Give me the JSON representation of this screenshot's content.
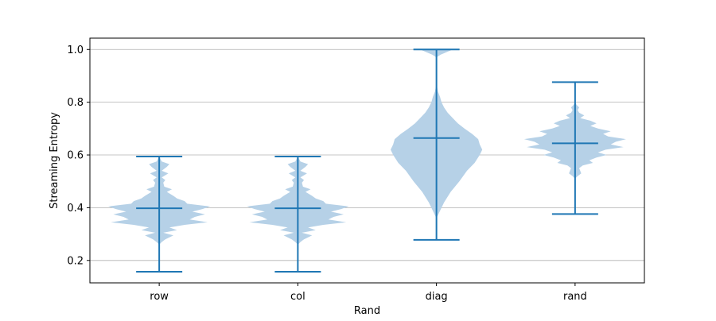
{
  "chart_data": {
    "type": "violin",
    "title": "",
    "xlabel": "Rand",
    "ylabel": "Streaming Entropy",
    "categories": [
      "row",
      "col",
      "diag",
      "rand"
    ],
    "ylim": [
      0.115,
      1.043
    ],
    "yticks": [
      0.2,
      0.4,
      0.6,
      0.8,
      1.0
    ],
    "ytick_labels": [
      "0.2",
      "0.4",
      "0.6",
      "0.8",
      "1.0"
    ],
    "grid": "y",
    "colors": {
      "body": "#b6d1e7",
      "line": "#1f77b4"
    },
    "distributions": [
      {
        "category": "row",
        "min": 0.157,
        "max": 0.594,
        "median": 0.398,
        "profile": [
          [
            0.157,
            0
          ],
          [
            0.26,
            0
          ],
          [
            0.27,
            0.05
          ],
          [
            0.28,
            0.12
          ],
          [
            0.295,
            0.28
          ],
          [
            0.305,
            0.08
          ],
          [
            0.315,
            0.35
          ],
          [
            0.325,
            0.2
          ],
          [
            0.335,
            0.5
          ],
          [
            0.345,
            0.95
          ],
          [
            0.355,
            0.6
          ],
          [
            0.365,
            0.7
          ],
          [
            0.375,
            0.9
          ],
          [
            0.385,
            0.65
          ],
          [
            0.395,
            0.85
          ],
          [
            0.405,
            1.0
          ],
          [
            0.415,
            0.55
          ],
          [
            0.425,
            0.5
          ],
          [
            0.435,
            0.35
          ],
          [
            0.445,
            0.28
          ],
          [
            0.46,
            0.15
          ],
          [
            0.47,
            0.25
          ],
          [
            0.48,
            0.1
          ],
          [
            0.495,
            0.08
          ],
          [
            0.505,
            0.12
          ],
          [
            0.515,
            0.05
          ],
          [
            0.53,
            0.18
          ],
          [
            0.54,
            0.05
          ],
          [
            0.555,
            0.15
          ],
          [
            0.565,
            0.2
          ],
          [
            0.575,
            0.05
          ],
          [
            0.594,
            0
          ]
        ]
      },
      {
        "category": "col",
        "min": 0.157,
        "max": 0.594,
        "median": 0.398,
        "profile": [
          [
            0.157,
            0
          ],
          [
            0.26,
            0
          ],
          [
            0.27,
            0.05
          ],
          [
            0.28,
            0.12
          ],
          [
            0.295,
            0.28
          ],
          [
            0.305,
            0.08
          ],
          [
            0.315,
            0.35
          ],
          [
            0.325,
            0.2
          ],
          [
            0.335,
            0.5
          ],
          [
            0.345,
            0.95
          ],
          [
            0.355,
            0.6
          ],
          [
            0.365,
            0.7
          ],
          [
            0.375,
            0.9
          ],
          [
            0.385,
            0.65
          ],
          [
            0.395,
            0.85
          ],
          [
            0.405,
            1.0
          ],
          [
            0.415,
            0.55
          ],
          [
            0.425,
            0.5
          ],
          [
            0.435,
            0.35
          ],
          [
            0.445,
            0.28
          ],
          [
            0.46,
            0.15
          ],
          [
            0.47,
            0.25
          ],
          [
            0.48,
            0.1
          ],
          [
            0.495,
            0.08
          ],
          [
            0.505,
            0.12
          ],
          [
            0.515,
            0.05
          ],
          [
            0.53,
            0.18
          ],
          [
            0.54,
            0.05
          ],
          [
            0.555,
            0.15
          ],
          [
            0.565,
            0.2
          ],
          [
            0.575,
            0.05
          ],
          [
            0.594,
            0
          ]
        ]
      },
      {
        "category": "diag",
        "min": 0.278,
        "max": 1.0,
        "median": 0.664,
        "profile": [
          [
            0.278,
            0
          ],
          [
            0.36,
            0
          ],
          [
            0.38,
            0.05
          ],
          [
            0.42,
            0.15
          ],
          [
            0.46,
            0.28
          ],
          [
            0.5,
            0.45
          ],
          [
            0.54,
            0.6
          ],
          [
            0.57,
            0.75
          ],
          [
            0.6,
            0.85
          ],
          [
            0.62,
            0.9
          ],
          [
            0.64,
            0.85
          ],
          [
            0.66,
            0.82
          ],
          [
            0.68,
            0.7
          ],
          [
            0.7,
            0.55
          ],
          [
            0.72,
            0.42
          ],
          [
            0.74,
            0.32
          ],
          [
            0.76,
            0.22
          ],
          [
            0.78,
            0.15
          ],
          [
            0.8,
            0.1
          ],
          [
            0.82,
            0.07
          ],
          [
            0.84,
            0.03
          ],
          [
            0.86,
            0.01
          ],
          [
            0.9,
            0
          ],
          [
            0.97,
            0
          ],
          [
            0.98,
            0.08
          ],
          [
            0.99,
            0.2
          ],
          [
            1.0,
            0.32
          ]
        ]
      },
      {
        "category": "rand",
        "min": 0.376,
        "max": 0.876,
        "median": 0.644,
        "profile": [
          [
            0.376,
            0
          ],
          [
            0.51,
            0
          ],
          [
            0.52,
            0.05
          ],
          [
            0.53,
            0.12
          ],
          [
            0.54,
            0.1
          ],
          [
            0.55,
            0.08
          ],
          [
            0.56,
            0.15
          ],
          [
            0.57,
            0.35
          ],
          [
            0.58,
            0.28
          ],
          [
            0.59,
            0.42
          ],
          [
            0.6,
            0.62
          ],
          [
            0.61,
            0.45
          ],
          [
            0.62,
            0.6
          ],
          [
            0.63,
            0.95
          ],
          [
            0.64,
            0.7
          ],
          [
            0.65,
            0.8
          ],
          [
            0.66,
            1.0
          ],
          [
            0.67,
            0.65
          ],
          [
            0.68,
            0.55
          ],
          [
            0.69,
            0.7
          ],
          [
            0.7,
            0.45
          ],
          [
            0.71,
            0.3
          ],
          [
            0.72,
            0.42
          ],
          [
            0.73,
            0.3
          ],
          [
            0.74,
            0.1
          ],
          [
            0.75,
            0.18
          ],
          [
            0.76,
            0.08
          ],
          [
            0.77,
            0.05
          ],
          [
            0.78,
            0.08
          ],
          [
            0.79,
            0.03
          ],
          [
            0.8,
            0
          ],
          [
            0.876,
            0
          ]
        ]
      }
    ]
  }
}
